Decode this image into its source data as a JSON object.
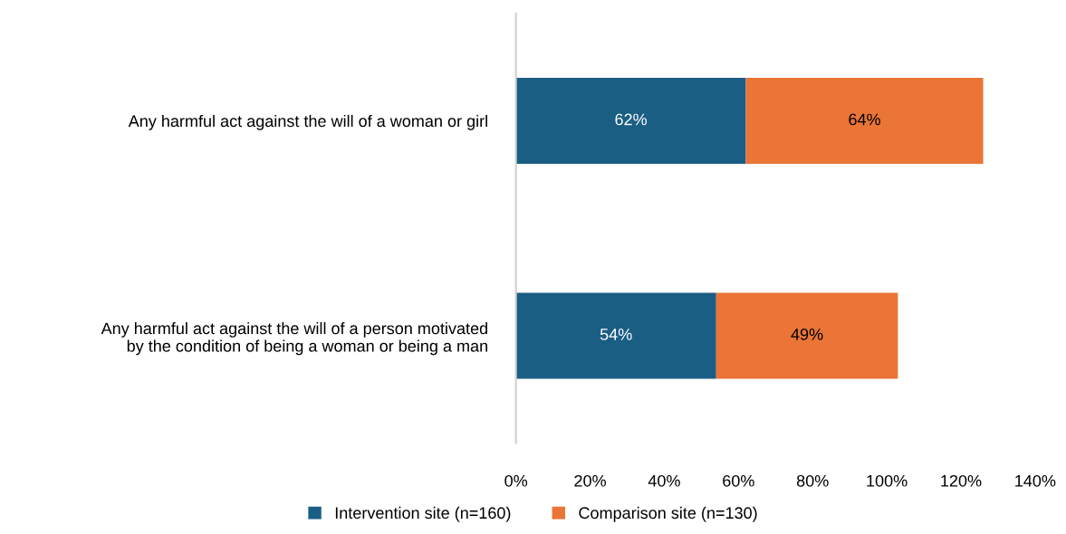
{
  "chart_data": {
    "type": "bar",
    "orientation": "horizontal",
    "stacked": true,
    "categories": [
      "Any harmful act against the will of a woman or girl",
      "Any harmful act against the will of a person motivated\nby the condition of being a woman or being a man"
    ],
    "series": [
      {
        "name": "Intervention site (n=160)",
        "color": "#1b5e84",
        "values": [
          62,
          54
        ],
        "value_labels": [
          "62%",
          "54%"
        ]
      },
      {
        "name": "Comparison site (n=130)",
        "color": "#ea7536",
        "values": [
          64,
          49
        ],
        "value_labels": [
          "64%",
          "49%"
        ]
      }
    ],
    "xlim": [
      0,
      140
    ],
    "xticks": [
      {
        "value": 0,
        "label": "0%"
      },
      {
        "value": 20,
        "label": "20%"
      },
      {
        "value": 40,
        "label": "40%"
      },
      {
        "value": 60,
        "label": "60%"
      },
      {
        "value": 80,
        "label": "80%"
      },
      {
        "value": 100,
        "label": "100%"
      },
      {
        "value": 120,
        "label": "120%"
      },
      {
        "value": 140,
        "label": "140%"
      }
    ],
    "grid": false,
    "legend": "bottom"
  }
}
